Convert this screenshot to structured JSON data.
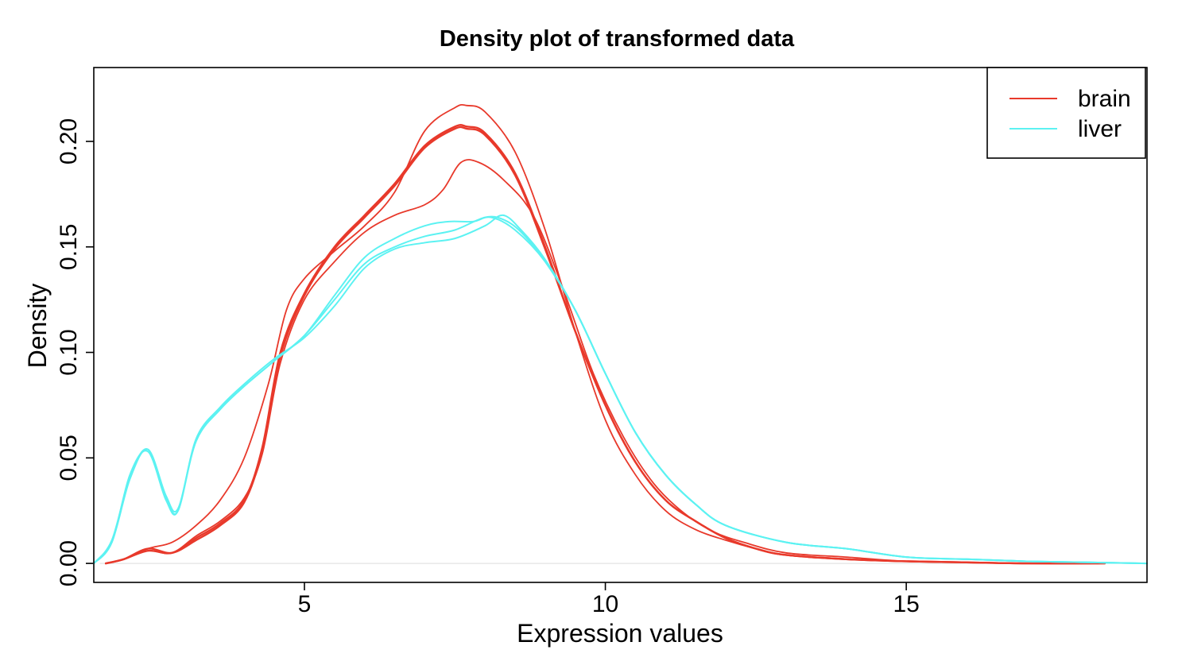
{
  "chart_data": {
    "type": "line",
    "title": "Density plot of transformed data",
    "xlabel": "Expression values",
    "ylabel": "Density",
    "xlim": [
      1.5,
      19.0
    ],
    "ylim": [
      -0.009,
      0.235
    ],
    "x_ticks": [
      5,
      10,
      15
    ],
    "x_tick_labels": [
      "5",
      "10",
      "15"
    ],
    "y_ticks": [
      0.0,
      0.05,
      0.1,
      0.15,
      0.2
    ],
    "y_tick_labels": [
      "0.00",
      "0.05",
      "0.10",
      "0.15",
      "0.20"
    ],
    "grid": false,
    "legend": {
      "position": "top-right",
      "entries": [
        {
          "label": "brain",
          "color": "#E8392B"
        },
        {
          "label": "liver",
          "color": "#5CF2F2"
        }
      ]
    },
    "colors": {
      "brain": "#E8392B",
      "liver": "#5CF2F2",
      "baseline": "#dddddd"
    },
    "series": [
      {
        "group": "brain",
        "color": "#E8392B",
        "width": 2.4,
        "x": [
          1.7,
          2.0,
          2.4,
          2.8,
          3.2,
          3.6,
          4.0,
          4.3,
          4.6,
          5.0,
          5.5,
          6.0,
          6.5,
          7.0,
          7.5,
          7.7,
          8.0,
          8.5,
          9.0,
          9.5,
          10.0,
          10.5,
          11.0,
          11.5,
          12.0,
          12.5,
          13.0,
          14.0,
          15.0,
          16.0,
          17.0,
          18.3
        ],
        "y": [
          0.0,
          0.002,
          0.006,
          0.005,
          0.012,
          0.019,
          0.03,
          0.055,
          0.1,
          0.128,
          0.15,
          0.165,
          0.18,
          0.198,
          0.207,
          0.207,
          0.204,
          0.185,
          0.15,
          0.11,
          0.075,
          0.048,
          0.03,
          0.02,
          0.012,
          0.007,
          0.004,
          0.002,
          0.001,
          0.0005,
          0.0,
          0.0
        ]
      },
      {
        "group": "brain",
        "color": "#E8392B",
        "width": 2.4,
        "x": [
          1.7,
          2.0,
          2.4,
          2.8,
          3.2,
          3.6,
          4.0,
          4.3,
          4.6,
          5.0,
          5.5,
          6.0,
          6.5,
          7.0,
          7.5,
          7.7,
          8.0,
          8.5,
          9.0,
          9.5,
          10.0,
          10.5,
          11.0,
          11.5,
          12.0,
          12.5,
          13.0,
          14.0,
          15.0,
          16.0,
          17.0,
          18.3
        ],
        "y": [
          0.0,
          0.002,
          0.007,
          0.005,
          0.011,
          0.018,
          0.029,
          0.054,
          0.098,
          0.127,
          0.149,
          0.164,
          0.179,
          0.197,
          0.206,
          0.206,
          0.203,
          0.184,
          0.149,
          0.11,
          0.075,
          0.048,
          0.03,
          0.02,
          0.012,
          0.007,
          0.004,
          0.002,
          0.001,
          0.0005,
          0.0,
          0.0
        ]
      },
      {
        "group": "brain",
        "color": "#E8392B",
        "width": 1.8,
        "x": [
          1.7,
          2.0,
          2.4,
          2.8,
          3.2,
          3.6,
          4.0,
          4.4,
          4.7,
          5.0,
          5.5,
          6.0,
          6.5,
          7.0,
          7.5,
          7.7,
          8.0,
          8.5,
          9.0,
          9.5,
          10.0,
          10.5,
          11.0,
          11.5,
          12.0,
          12.5,
          13.0,
          14.0,
          15.0,
          16.0,
          17.0,
          18.3
        ],
        "y": [
          0.0,
          0.002,
          0.007,
          0.01,
          0.018,
          0.03,
          0.05,
          0.085,
          0.12,
          0.135,
          0.148,
          0.16,
          0.176,
          0.205,
          0.216,
          0.217,
          0.214,
          0.195,
          0.158,
          0.11,
          0.068,
          0.042,
          0.025,
          0.016,
          0.011,
          0.007,
          0.004,
          0.002,
          0.001,
          0.0005,
          0.0,
          0.0
        ]
      },
      {
        "group": "brain",
        "color": "#E8392B",
        "width": 1.8,
        "x": [
          1.7,
          2.0,
          2.4,
          2.8,
          3.2,
          3.6,
          4.0,
          4.3,
          4.6,
          5.0,
          5.5,
          6.0,
          6.5,
          7.0,
          7.3,
          7.6,
          7.9,
          8.3,
          8.8,
          9.3,
          9.8,
          10.3,
          10.8,
          11.3,
          11.8,
          12.3,
          13.0,
          14.0,
          15.0,
          16.0,
          17.0,
          18.3
        ],
        "y": [
          0.0,
          0.002,
          0.006,
          0.005,
          0.013,
          0.02,
          0.031,
          0.052,
          0.095,
          0.125,
          0.143,
          0.157,
          0.165,
          0.17,
          0.177,
          0.19,
          0.19,
          0.182,
          0.165,
          0.13,
          0.09,
          0.06,
          0.038,
          0.024,
          0.015,
          0.01,
          0.005,
          0.003,
          0.001,
          0.0005,
          0.0,
          0.0
        ]
      },
      {
        "group": "liver",
        "color": "#5CF2F2",
        "width": 2.0,
        "x": [
          1.5,
          1.8,
          2.1,
          2.4,
          2.7,
          2.9,
          3.2,
          3.6,
          4.0,
          4.5,
          5.0,
          5.5,
          6.0,
          6.5,
          7.0,
          7.5,
          8.0,
          8.3,
          8.6,
          9.0,
          9.5,
          10.0,
          10.5,
          11.0,
          11.5,
          12.0,
          13.0,
          14.0,
          15.0,
          16.0,
          17.0,
          18.0,
          19.0
        ],
        "y": [
          0.0,
          0.01,
          0.04,
          0.054,
          0.032,
          0.026,
          0.058,
          0.073,
          0.084,
          0.096,
          0.108,
          0.125,
          0.142,
          0.15,
          0.155,
          0.158,
          0.164,
          0.163,
          0.157,
          0.143,
          0.12,
          0.09,
          0.062,
          0.042,
          0.028,
          0.018,
          0.01,
          0.007,
          0.003,
          0.002,
          0.001,
          0.0005,
          0.0
        ]
      },
      {
        "group": "liver",
        "color": "#5CF2F2",
        "width": 2.0,
        "x": [
          1.5,
          1.8,
          2.1,
          2.4,
          2.7,
          2.9,
          3.2,
          3.6,
          4.0,
          4.5,
          5.0,
          5.5,
          6.0,
          6.5,
          7.0,
          7.5,
          8.0,
          8.3,
          8.6,
          9.0,
          9.5,
          10.0,
          10.5,
          11.0,
          11.5,
          12.0,
          13.0,
          14.0,
          15.0,
          16.0,
          17.0,
          18.0,
          19.0
        ],
        "y": [
          0.0,
          0.01,
          0.042,
          0.053,
          0.03,
          0.025,
          0.059,
          0.074,
          0.085,
          0.097,
          0.107,
          0.122,
          0.14,
          0.149,
          0.152,
          0.154,
          0.16,
          0.165,
          0.158,
          0.144,
          0.12,
          0.09,
          0.062,
          0.042,
          0.028,
          0.018,
          0.01,
          0.007,
          0.003,
          0.002,
          0.001,
          0.0005,
          0.0
        ]
      },
      {
        "group": "liver",
        "color": "#5CF2F2",
        "width": 2.0,
        "x": [
          1.5,
          1.8,
          2.1,
          2.4,
          2.7,
          2.9,
          3.2,
          3.6,
          4.0,
          4.5,
          5.0,
          5.5,
          6.0,
          6.5,
          7.0,
          7.4,
          7.8,
          8.1,
          8.5,
          9.0,
          9.5,
          10.0,
          10.5,
          11.0,
          11.5,
          12.0,
          13.0,
          14.0,
          15.0,
          16.0,
          17.0,
          18.0,
          19.0
        ],
        "y": [
          0.0,
          0.011,
          0.041,
          0.054,
          0.031,
          0.025,
          0.058,
          0.073,
          0.084,
          0.096,
          0.108,
          0.127,
          0.145,
          0.154,
          0.16,
          0.162,
          0.162,
          0.164,
          0.158,
          0.143,
          0.12,
          0.09,
          0.062,
          0.042,
          0.028,
          0.018,
          0.01,
          0.007,
          0.003,
          0.002,
          0.001,
          0.0005,
          0.0
        ]
      }
    ]
  }
}
